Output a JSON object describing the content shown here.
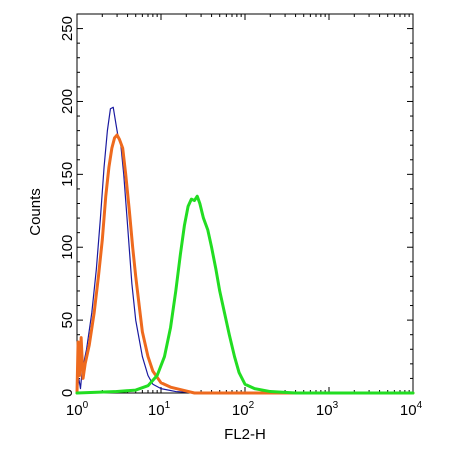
{
  "chart_data": {
    "type": "line",
    "xlabel": "FL2-H",
    "ylabel": "Counts",
    "xscale": "log",
    "xlim": [
      1,
      10000
    ],
    "ylim": [
      0,
      260
    ],
    "x_ticks": [
      {
        "base": "10",
        "exp": "0",
        "value": 1
      },
      {
        "base": "10",
        "exp": "1",
        "value": 10
      },
      {
        "base": "10",
        "exp": "2",
        "value": 100
      },
      {
        "base": "10",
        "exp": "3",
        "value": 1000
      },
      {
        "base": "10",
        "exp": "4",
        "value": 10000
      }
    ],
    "y_ticks": [
      "0",
      "50",
      "100",
      "150",
      "200",
      "250"
    ],
    "series": [
      {
        "color": "#1a1aa0",
        "stroke": "thin",
        "points": [
          [
            1,
            0
          ],
          [
            1.05,
            10
          ],
          [
            1.1,
            3
          ],
          [
            1.15,
            15
          ],
          [
            1.3,
            30
          ],
          [
            1.5,
            55
          ],
          [
            1.7,
            85
          ],
          [
            1.9,
            120
          ],
          [
            2.1,
            155
          ],
          [
            2.3,
            180
          ],
          [
            2.5,
            195
          ],
          [
            2.7,
            196
          ],
          [
            2.9,
            185
          ],
          [
            3.1,
            175
          ],
          [
            3.3,
            172
          ],
          [
            3.6,
            150
          ],
          [
            4,
            115
          ],
          [
            4.5,
            75
          ],
          [
            5,
            50
          ],
          [
            6,
            25
          ],
          [
            7,
            12
          ],
          [
            8,
            6
          ],
          [
            10,
            3
          ],
          [
            15,
            1
          ],
          [
            30,
            0
          ],
          [
            10000,
            0
          ]
        ]
      },
      {
        "color": "#ee6a1e",
        "stroke": "thick",
        "points": [
          [
            1,
            0
          ],
          [
            1.03,
            35
          ],
          [
            1.07,
            12
          ],
          [
            1.12,
            38
          ],
          [
            1.18,
            10
          ],
          [
            1.25,
            20
          ],
          [
            1.4,
            33
          ],
          [
            1.6,
            55
          ],
          [
            1.8,
            80
          ],
          [
            2,
            105
          ],
          [
            2.2,
            135
          ],
          [
            2.4,
            155
          ],
          [
            2.6,
            168
          ],
          [
            2.8,
            175
          ],
          [
            3,
            177
          ],
          [
            3.2,
            174
          ],
          [
            3.5,
            168
          ],
          [
            3.8,
            150
          ],
          [
            4.2,
            125
          ],
          [
            4.6,
            100
          ],
          [
            5,
            80
          ],
          [
            5.5,
            60
          ],
          [
            6,
            42
          ],
          [
            7,
            25
          ],
          [
            8,
            15
          ],
          [
            10,
            7
          ],
          [
            13,
            4
          ],
          [
            18,
            2
          ],
          [
            25,
            0
          ],
          [
            10000,
            0
          ]
        ]
      },
      {
        "color": "#22dd22",
        "stroke": "thick",
        "points": [
          [
            1,
            0
          ],
          [
            3,
            1
          ],
          [
            5,
            2
          ],
          [
            7,
            5
          ],
          [
            9,
            12
          ],
          [
            11,
            25
          ],
          [
            13,
            45
          ],
          [
            15,
            70
          ],
          [
            17,
            95
          ],
          [
            19,
            115
          ],
          [
            21,
            128
          ],
          [
            23,
            133
          ],
          [
            25,
            132
          ],
          [
            27,
            135
          ],
          [
            29,
            130
          ],
          [
            32,
            120
          ],
          [
            36,
            112
          ],
          [
            40,
            100
          ],
          [
            45,
            85
          ],
          [
            50,
            70
          ],
          [
            57,
            55
          ],
          [
            65,
            40
          ],
          [
            75,
            25
          ],
          [
            85,
            14
          ],
          [
            100,
            6
          ],
          [
            130,
            3
          ],
          [
            200,
            1
          ],
          [
            400,
            0
          ],
          [
            10000,
            0
          ]
        ]
      }
    ]
  }
}
